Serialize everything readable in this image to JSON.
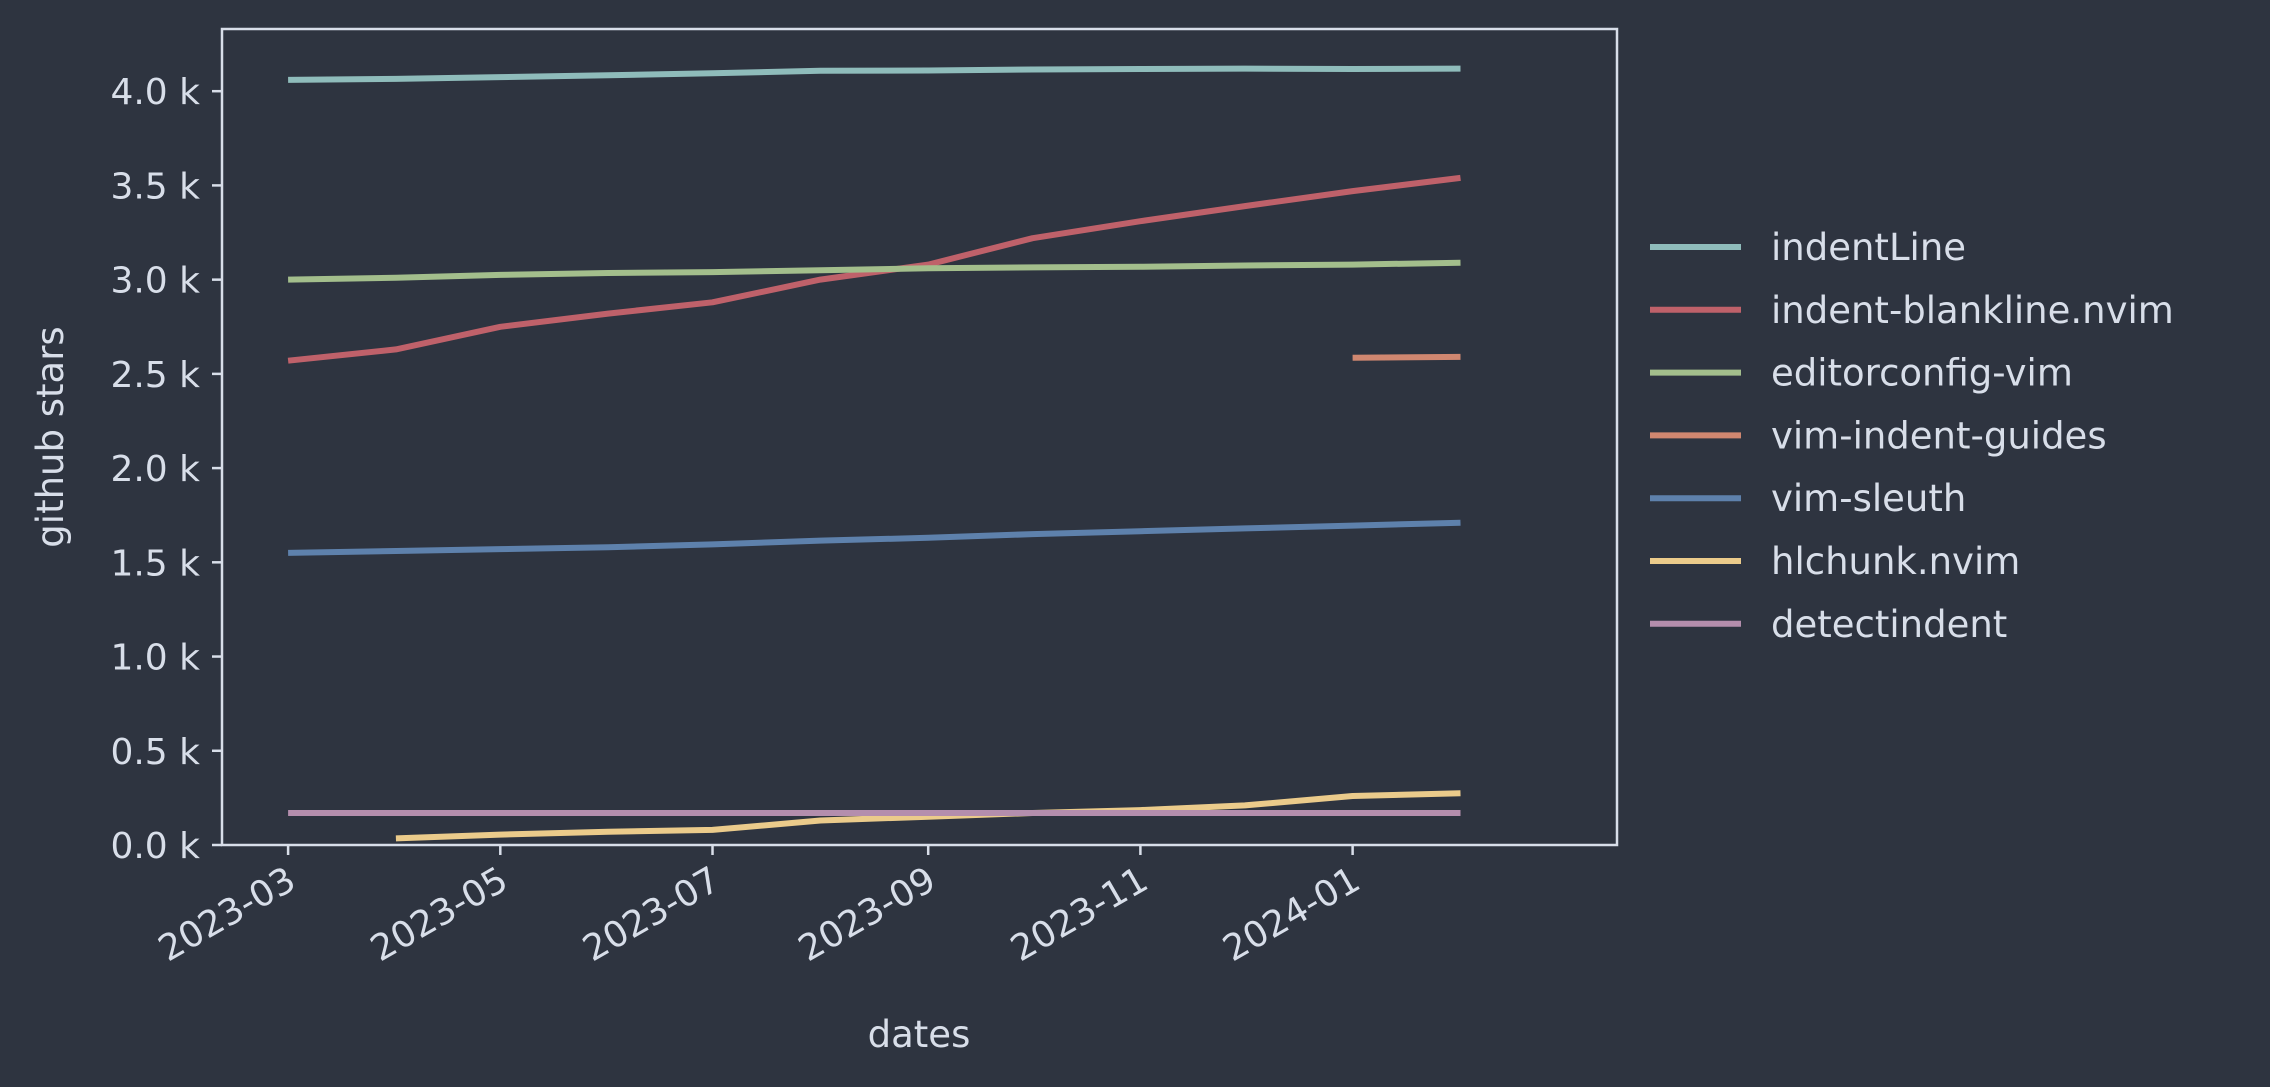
{
  "chart_data": {
    "type": "line",
    "xlabel": "dates",
    "ylabel": "github stars",
    "x_ticks": [
      "2023-03",
      "2023-05",
      "2023-07",
      "2023-09",
      "2023-11",
      "2024-01"
    ],
    "y_ticks": [
      "0.0 k",
      "0.5 k",
      "1.0 k",
      "1.5 k",
      "2.0 k",
      "2.5 k",
      "3.0 k",
      "3.5 k",
      "4.0 k"
    ],
    "ylim": [
      0,
      4330
    ],
    "xlim": [
      "2023-02-10",
      "2024-03-17"
    ],
    "grid": false,
    "legend_position": "right",
    "background": "#2e3440",
    "foreground": "#d8dee9",
    "series": [
      {
        "name": "indentLine",
        "color": "#8fbcbb",
        "x": [
          "2023-03",
          "2023-04",
          "2023-05",
          "2023-06",
          "2023-07",
          "2023-08",
          "2023-09",
          "2023-10",
          "2023-11",
          "2023-12",
          "2024-01",
          "2024-02"
        ],
        "y": [
          4060,
          4065,
          4075,
          4085,
          4095,
          4108,
          4110,
          4115,
          4118,
          4120,
          4118,
          4120
        ]
      },
      {
        "name": "indent-blankline.nvim",
        "color": "#bf616a",
        "x": [
          "2023-03",
          "2023-04",
          "2023-05",
          "2023-06",
          "2023-07",
          "2023-08",
          "2023-09",
          "2023-10",
          "2023-11",
          "2023-12",
          "2024-01",
          "2024-02"
        ],
        "y": [
          2570,
          2630,
          2750,
          2820,
          2880,
          3000,
          3080,
          3220,
          3310,
          3390,
          3470,
          3540
        ]
      },
      {
        "name": "editorconfig-vim",
        "color": "#a3be8c",
        "x": [
          "2023-03",
          "2023-04",
          "2023-05",
          "2023-06",
          "2023-07",
          "2023-08",
          "2023-09",
          "2023-10",
          "2023-11",
          "2023-12",
          "2024-01",
          "2024-02"
        ],
        "y": [
          3000,
          3010,
          3025,
          3035,
          3040,
          3050,
          3060,
          3065,
          3068,
          3075,
          3080,
          3090
        ]
      },
      {
        "name": "vim-indent-guides",
        "color": "#d08770",
        "x": [
          "2024-01",
          "2024-02"
        ],
        "y": [
          2585,
          2590
        ]
      },
      {
        "name": "vim-sleuth",
        "color": "#5e81ac",
        "x": [
          "2023-03",
          "2023-04",
          "2023-05",
          "2023-06",
          "2023-07",
          "2023-08",
          "2023-09",
          "2023-10",
          "2023-11",
          "2023-12",
          "2024-01",
          "2024-02"
        ],
        "y": [
          1550,
          1560,
          1570,
          1580,
          1595,
          1615,
          1630,
          1650,
          1665,
          1680,
          1695,
          1710
        ]
      },
      {
        "name": "hlchunk.nvim",
        "color": "#ebcb8b",
        "x": [
          "2023-04",
          "2023-05",
          "2023-06",
          "2023-07",
          "2023-08",
          "2023-09",
          "2023-10",
          "2023-11",
          "2023-12",
          "2024-01",
          "2024-02"
        ],
        "y": [
          35,
          55,
          70,
          80,
          130,
          150,
          170,
          185,
          210,
          260,
          275
        ]
      },
      {
        "name": "detectindent",
        "color": "#b48ead",
        "x": [
          "2023-03",
          "2023-04",
          "2023-05",
          "2023-06",
          "2023-07",
          "2023-08",
          "2023-09",
          "2023-10",
          "2023-11",
          "2023-12",
          "2024-01",
          "2024-02"
        ],
        "y": [
          170,
          170,
          170,
          170,
          170,
          170,
          170,
          170,
          170,
          170,
          170,
          170
        ]
      }
    ]
  }
}
